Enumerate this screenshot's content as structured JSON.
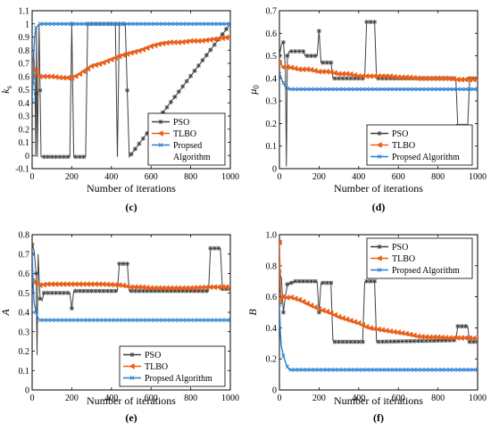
{
  "colors": {
    "pso": "#404040",
    "tlbo": "#e8611a",
    "proposed": "#2a7fd4"
  },
  "chart_data": [
    {
      "type": "line",
      "caption": "(c)",
      "xlabel": "Number of iterations",
      "ylabel": "k",
      "ylabel_sub": "s",
      "xlim": [
        0,
        1000
      ],
      "ylim": [
        -0.1,
        1.1
      ],
      "xticks": [
        "0",
        "200",
        "400",
        "600",
        "800",
        "1000"
      ],
      "yticks": [
        "-0.1",
        "0",
        "0.1",
        "0.2",
        "0.3",
        "0.4",
        "0.5",
        "0.6",
        "0.7",
        "0.8",
        "0.9",
        "1",
        "1.1"
      ],
      "legend_position": "lower-right",
      "series": [
        {
          "name": "PSO",
          "color_key": "pso",
          "marker": "star",
          "x": [
            0,
            8,
            14,
            18,
            22,
            26,
            35,
            45,
            190,
            200,
            210,
            270,
            280,
            420,
            430,
            440,
            470,
            490,
            1000
          ],
          "y": [
            0.55,
            0.8,
            0.6,
            -0.01,
            0.95,
            -0.01,
            1.0,
            -0.01,
            -0.01,
            1.0,
            -0.01,
            -0.01,
            1.0,
            1.0,
            -0.01,
            1.0,
            1.0,
            -0.01,
            1.0
          ]
        },
        {
          "name": "TLBO",
          "color_key": "tlbo",
          "marker": "triangle-left",
          "x": [
            0,
            5,
            10,
            18,
            25,
            35,
            60,
            100,
            150,
            200,
            230,
            260,
            300,
            350,
            400,
            450,
            500,
            550,
            600,
            650,
            700,
            750,
            800,
            850,
            900,
            950,
            1000
          ],
          "y": [
            0.6,
            0.74,
            0.68,
            0.65,
            0.62,
            0.6,
            0.6,
            0.6,
            0.59,
            0.59,
            0.61,
            0.64,
            0.68,
            0.7,
            0.73,
            0.76,
            0.78,
            0.8,
            0.83,
            0.85,
            0.86,
            0.86,
            0.87,
            0.87,
            0.88,
            0.89,
            0.9
          ]
        },
        {
          "name": "Propsed Algorithm",
          "legend_lines": [
            "Propsed",
            "Algorithm"
          ],
          "color_key": "proposed",
          "marker": "x",
          "x": [
            0,
            5,
            10,
            15,
            20,
            30,
            40,
            60,
            100,
            1000
          ],
          "y": [
            0.42,
            0.6,
            0.83,
            0.93,
            0.97,
            0.99,
            1.0,
            1.0,
            1.0,
            1.0
          ]
        }
      ]
    },
    {
      "type": "line",
      "caption": "(d)",
      "xlabel": "Number of iterations",
      "ylabel": "μ",
      "ylabel_sub": "0",
      "xlim": [
        0,
        1000
      ],
      "ylim": [
        0,
        0.7
      ],
      "xticks": [
        "0",
        "200",
        "400",
        "600",
        "800",
        "1000"
      ],
      "yticks": [
        "0",
        "0.1",
        "0.2",
        "0.3",
        "0.4",
        "0.5",
        "0.6",
        "0.7"
      ],
      "legend_position": "lower-right",
      "series": [
        {
          "name": "PSO",
          "color_key": "pso",
          "marker": "star",
          "x": [
            0,
            10,
            20,
            30,
            35,
            40,
            50,
            120,
            130,
            190,
            200,
            210,
            260,
            270,
            430,
            440,
            480,
            490,
            890,
            900,
            950,
            960,
            1000
          ],
          "y": [
            0.5,
            0.55,
            0.56,
            0.45,
            0.01,
            0.5,
            0.52,
            0.52,
            0.5,
            0.5,
            0.61,
            0.47,
            0.47,
            0.4,
            0.4,
            0.65,
            0.65,
            0.4,
            0.4,
            0.19,
            0.19,
            0.4,
            0.4
          ]
        },
        {
          "name": "TLBO",
          "color_key": "tlbo",
          "marker": "triangle-left",
          "x": [
            0,
            20,
            50,
            100,
            150,
            200,
            250,
            300,
            350,
            400,
            450,
            500,
            550,
            600,
            650,
            700,
            750,
            800,
            850,
            900,
            950,
            1000
          ],
          "y": [
            0.47,
            0.45,
            0.45,
            0.44,
            0.44,
            0.43,
            0.43,
            0.42,
            0.42,
            0.41,
            0.41,
            0.41,
            0.41,
            0.405,
            0.405,
            0.4,
            0.4,
            0.4,
            0.4,
            0.395,
            0.395,
            0.395
          ]
        },
        {
          "name": "Propsed Algorithm",
          "color_key": "proposed",
          "marker": "x",
          "x": [
            0,
            10,
            20,
            30,
            40,
            60,
            100,
            1000
          ],
          "y": [
            0.42,
            0.4,
            0.38,
            0.36,
            0.355,
            0.352,
            0.352,
            0.352
          ]
        }
      ]
    },
    {
      "type": "line",
      "caption": "(e)",
      "xlabel": "Number of iterations",
      "ylabel": "A",
      "xlim": [
        0,
        1000
      ],
      "ylim": [
        0,
        0.8
      ],
      "xticks": [
        "0",
        "200",
        "400",
        "600",
        "800",
        "1000"
      ],
      "yticks": [
        "0",
        "0.1",
        "0.2",
        "0.3",
        "0.4",
        "0.5",
        "0.6",
        "0.7",
        "0.8"
      ],
      "legend_position": "lower-right",
      "series": [
        {
          "name": "PSO",
          "color_key": "pso",
          "marker": "star",
          "x": [
            0,
            10,
            20,
            25,
            30,
            40,
            50,
            60,
            190,
            200,
            210,
            430,
            440,
            480,
            490,
            890,
            900,
            950,
            960,
            1000
          ],
          "y": [
            0.75,
            0.72,
            0.6,
            0.18,
            0.7,
            0.47,
            0.46,
            0.5,
            0.5,
            0.42,
            0.51,
            0.51,
            0.65,
            0.65,
            0.51,
            0.51,
            0.73,
            0.73,
            0.52,
            0.52
          ]
        },
        {
          "name": "TLBO",
          "color_key": "tlbo",
          "marker": "triangle-left",
          "x": [
            0,
            10,
            20,
            40,
            80,
            150,
            250,
            350,
            450,
            500,
            550,
            600,
            700,
            800,
            900,
            1000
          ],
          "y": [
            0.56,
            0.57,
            0.55,
            0.54,
            0.545,
            0.545,
            0.545,
            0.545,
            0.54,
            0.53,
            0.53,
            0.525,
            0.525,
            0.525,
            0.53,
            0.53
          ]
        },
        {
          "name": "Propsed Algorithm",
          "color_key": "proposed",
          "marker": "x",
          "x": [
            0,
            5,
            10,
            20,
            30,
            40,
            60,
            100,
            1000
          ],
          "y": [
            0.7,
            0.55,
            0.45,
            0.4,
            0.37,
            0.36,
            0.36,
            0.36,
            0.36
          ]
        }
      ]
    },
    {
      "type": "line",
      "caption": "(f)",
      "xlabel": "Number of iterations",
      "ylabel": "B",
      "xlim": [
        0,
        1000
      ],
      "ylim": [
        0,
        1.0
      ],
      "xticks": [
        "0",
        "200",
        "400",
        "600",
        "800",
        "1000"
      ],
      "yticks": [
        "0",
        "0.2",
        "0.4",
        "0.6",
        "0.8",
        "1.0"
      ],
      "legend_position": "upper-right",
      "series": [
        {
          "name": "PSO",
          "color_key": "pso",
          "marker": "star",
          "x": [
            0,
            10,
            20,
            30,
            40,
            60,
            80,
            190,
            200,
            210,
            260,
            270,
            280,
            420,
            430,
            440,
            480,
            490,
            890,
            900,
            950,
            960,
            1000
          ],
          "y": [
            0.76,
            0.72,
            0.5,
            0.6,
            0.68,
            0.69,
            0.7,
            0.7,
            0.5,
            0.69,
            0.69,
            0.32,
            0.31,
            0.31,
            0.69,
            0.7,
            0.7,
            0.31,
            0.32,
            0.41,
            0.41,
            0.31,
            0.31
          ]
        },
        {
          "name": "TLBO",
          "color_key": "tlbo",
          "marker": "triangle-left",
          "x": [
            0,
            5,
            10,
            15,
            20,
            30,
            50,
            100,
            150,
            200,
            250,
            300,
            350,
            400,
            450,
            500,
            550,
            600,
            650,
            700,
            750,
            800,
            850,
            900,
            950,
            1000
          ],
          "y": [
            0.95,
            0.65,
            0.55,
            0.62,
            0.6,
            0.59,
            0.6,
            0.58,
            0.55,
            0.52,
            0.5,
            0.47,
            0.45,
            0.43,
            0.4,
            0.39,
            0.38,
            0.37,
            0.36,
            0.345,
            0.34,
            0.34,
            0.335,
            0.335,
            0.335,
            0.33
          ]
        },
        {
          "name": "Propsed Algorithm",
          "color_key": "proposed",
          "marker": "x",
          "x": [
            0,
            5,
            10,
            20,
            30,
            40,
            50,
            60,
            100,
            1000
          ],
          "y": [
            0.55,
            0.36,
            0.28,
            0.22,
            0.18,
            0.15,
            0.13,
            0.13,
            0.13,
            0.13
          ]
        }
      ]
    }
  ]
}
